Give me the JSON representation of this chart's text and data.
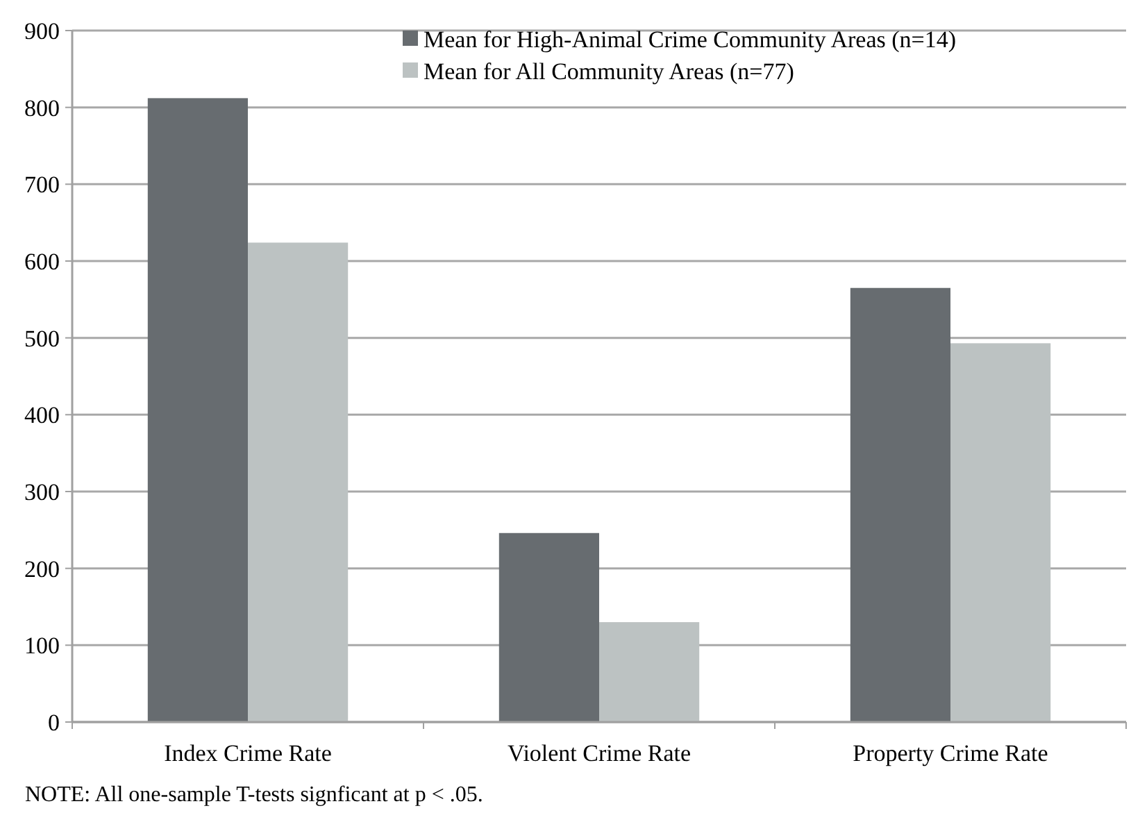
{
  "chart_data": {
    "type": "bar",
    "categories": [
      "Index Crime Rate",
      "Violent Crime Rate",
      "Property Crime Rate"
    ],
    "series": [
      {
        "name": "Mean for High-Animal Crime Community Areas (n=14)",
        "color": "#676c70",
        "values": [
          812,
          246,
          565
        ]
      },
      {
        "name": "Mean for All Community Areas (n=77)",
        "color": "#bcc2c2",
        "values": [
          624,
          130,
          493
        ]
      }
    ],
    "ylim": [
      0,
      900
    ],
    "yticks": [
      0,
      100,
      200,
      300,
      400,
      500,
      600,
      700,
      800,
      900
    ],
    "grid": "y",
    "legend": "top",
    "annotations": [
      "NOTE:  All one-sample T-tests signficant at p < .05."
    ]
  }
}
